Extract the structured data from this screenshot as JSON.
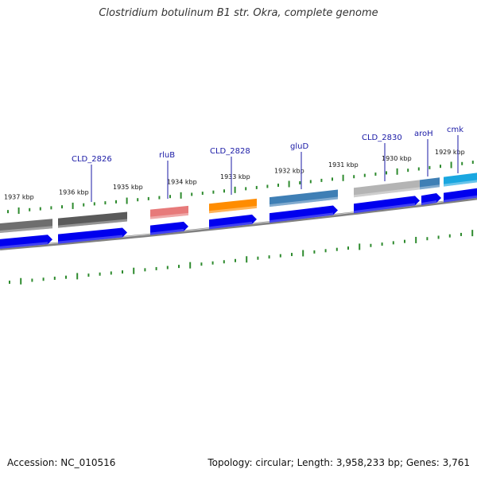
{
  "title": "Clostridium botulinum B1 str. Okra, complete genome",
  "footer": {
    "accession": "Accession: NC_010516",
    "summary": "Topology: circular; Length: 3,958,233 bp; Genes: 3,761"
  },
  "colors": {
    "tick": "#2e8b2e",
    "backbone": "#808080",
    "forward_cds": "#0000ee",
    "gene_label": "#1a1aa6",
    "leader": "#1a1aa6"
  },
  "scale_ticks": [
    {
      "label": "1937 kbp"
    },
    {
      "label": "1936 kbp"
    },
    {
      "label": "1935 kbp"
    },
    {
      "label": "1934 kbp"
    },
    {
      "label": "1933 kbp"
    },
    {
      "label": "1932 kbp"
    },
    {
      "label": "1931 kbp"
    },
    {
      "label": "1930 kbp"
    },
    {
      "label": "1929 kbp"
    }
  ],
  "gene_labels": [
    {
      "name": "CLD_2826"
    },
    {
      "name": "rluB"
    },
    {
      "name": "CLD_2828"
    },
    {
      "name": "gluD"
    },
    {
      "name": "CLD_2830"
    },
    {
      "name": "aroH"
    },
    {
      "name": "cmk"
    }
  ],
  "features": [
    {
      "kind": "gene",
      "color": "#6e6e6e"
    },
    {
      "kind": "gene",
      "color": "#5a5a5a"
    },
    {
      "kind": "gene",
      "color": "#e77a7a"
    },
    {
      "kind": "gene",
      "color": "#ff8c00"
    },
    {
      "kind": "gene",
      "color": "#3f7fb5"
    },
    {
      "kind": "gene",
      "color": "#b4b4b4"
    },
    {
      "kind": "gene",
      "color": "#3f7fb5"
    },
    {
      "kind": "gene",
      "color": "#1aa7e0"
    }
  ]
}
